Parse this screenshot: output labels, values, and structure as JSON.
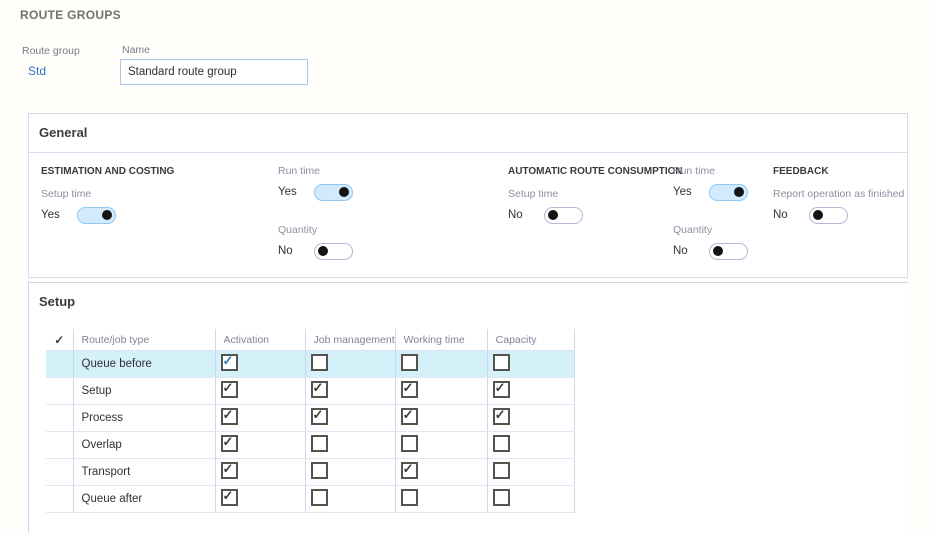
{
  "page": {
    "title": "ROUTE GROUPS"
  },
  "header_fields": {
    "route_group": {
      "label": "Route group",
      "value": "Std"
    },
    "name": {
      "label": "Name",
      "value": "Standard route group"
    }
  },
  "general": {
    "title": "General",
    "columns": [
      {
        "heading": "ESTIMATION AND COSTING",
        "fields": [
          {
            "label": "Setup time",
            "value": "Yes",
            "on": true
          }
        ]
      },
      {
        "heading": "",
        "fields": [
          {
            "label": "Run time",
            "value": "Yes",
            "on": true
          },
          {
            "label": "Quantity",
            "value": "No",
            "on": false
          }
        ]
      },
      {
        "heading": "AUTOMATIC ROUTE CONSUMPTION",
        "fields": [
          {
            "label": "Setup time",
            "value": "No",
            "on": false
          }
        ]
      },
      {
        "heading": "",
        "fields": [
          {
            "label": "Run time",
            "value": "Yes",
            "on": true
          },
          {
            "label": "Quantity",
            "value": "No",
            "on": false
          }
        ]
      },
      {
        "heading": "FEEDBACK",
        "fields": [
          {
            "label": "Report operation as finished",
            "value": "No",
            "on": false
          }
        ]
      }
    ]
  },
  "setup": {
    "title": "Setup",
    "grid": {
      "select_all_icon": "check-icon",
      "columns": [
        "Route/job type",
        "Activation",
        "Job management",
        "Working time",
        "Capacity"
      ],
      "rows": [
        {
          "label": "Queue before",
          "selected": true,
          "checks": [
            true,
            false,
            false,
            false
          ]
        },
        {
          "label": "Setup",
          "selected": false,
          "checks": [
            true,
            true,
            true,
            true
          ]
        },
        {
          "label": "Process",
          "selected": false,
          "checks": [
            true,
            true,
            true,
            true
          ]
        },
        {
          "label": "Overlap",
          "selected": false,
          "checks": [
            true,
            false,
            false,
            false
          ]
        },
        {
          "label": "Transport",
          "selected": false,
          "checks": [
            true,
            false,
            true,
            false
          ]
        },
        {
          "label": "Queue after",
          "selected": false,
          "checks": [
            true,
            false,
            false,
            false
          ]
        }
      ]
    }
  },
  "colors": {
    "toggle_on_bg": "#d2eafb",
    "toggle_on_border": "#92c8f0",
    "toggle_off_border": "#b9b7d7",
    "toggle_knob": "#141414",
    "selected_row_bg": "#d4f1f9",
    "link_blue": "#2d70c8",
    "check_default": "#3c3a36",
    "check_selected_row": "#2e74b5",
    "panel_border": "#dbd9ef",
    "grid_vline": "#ccd8ec",
    "grid_hline": "#e6e4f2"
  }
}
